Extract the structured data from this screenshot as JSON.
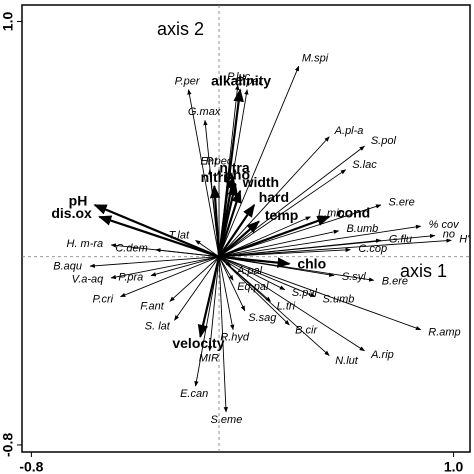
{
  "chart_data": {
    "type": "biplot",
    "axis_labels": [
      "axis 1",
      "axis 2"
    ],
    "xlim": [
      -0.84,
      1.07
    ],
    "ylim": [
      -0.83,
      1.07
    ],
    "xticks": [
      -0.8,
      {
        "value": 1,
        "label": "1.0"
      }
    ],
    "yticks": [
      -0.8,
      {
        "value": 1,
        "label": "1.0"
      }
    ],
    "environment": [
      {
        "label": "alkalinity",
        "x": 0.09,
        "y": 0.71
      },
      {
        "label": "nitri",
        "x": -0.02,
        "y": 0.3
      },
      {
        "label": "nitra",
        "x": 0.06,
        "y": 0.34
      },
      {
        "label": "pho",
        "x": 0.07,
        "y": 0.31
      },
      {
        "label": "width",
        "x": 0.09,
        "y": 0.28
      },
      {
        "label": "hard",
        "x": 0.15,
        "y": 0.22
      },
      {
        "label": "temp",
        "x": 0.17,
        "y": 0.15
      },
      {
        "label": "pH",
        "x": -0.53,
        "y": 0.22
      },
      {
        "label": "dis.ox",
        "x": -0.51,
        "y": 0.17
      },
      {
        "label": "cond",
        "x": 0.47,
        "y": 0.17
      },
      {
        "label": "chlo",
        "x": 0.3,
        "y": -0.03
      },
      {
        "label": "velocity",
        "x": -0.08,
        "y": -0.34
      }
    ],
    "species": [
      {
        "label": "M.spi",
        "x": 0.34,
        "y": 0.81
      },
      {
        "label": "P.per",
        "x": -0.13,
        "y": 0.71
      },
      {
        "label": "P.luc",
        "x": 0.08,
        "y": 0.73
      },
      {
        "label": "E.pal",
        "x": 0.12,
        "y": 0.71
      },
      {
        "label": "G.max",
        "x": -0.06,
        "y": 0.58
      },
      {
        "label": "A.pl-a",
        "x": 0.47,
        "y": 0.51
      },
      {
        "label": "S.pol",
        "x": 0.62,
        "y": 0.47
      },
      {
        "label": "S.lac",
        "x": 0.54,
        "y": 0.37
      },
      {
        "label": "P.pec",
        "x": 0.0,
        "y": 0.37
      },
      {
        "label": "Ent",
        "x": -0.04,
        "y": 0.37
      },
      {
        "label": "L.min",
        "x": 0.39,
        "y": 0.17
      },
      {
        "label": "S.ere",
        "x": 0.69,
        "y": 0.22
      },
      {
        "label": "B.umb",
        "x": 0.51,
        "y": 0.11
      },
      {
        "label": "% cov",
        "x": 0.86,
        "y": 0.13
      },
      {
        "label": "G.flu",
        "x": 0.69,
        "y": 0.07
      },
      {
        "label": "no",
        "x": 0.92,
        "y": 0.09
      },
      {
        "label": "H'",
        "x": 0.99,
        "y": 0.07
      },
      {
        "label": "C.cop",
        "x": 0.56,
        "y": 0.03
      },
      {
        "label": "T.lat",
        "x": -0.1,
        "y": 0.07
      },
      {
        "label": "H. m-ra",
        "x": -0.46,
        "y": 0.05
      },
      {
        "label": "C.dem",
        "x": -0.27,
        "y": 0.03
      },
      {
        "label": "B.aqu",
        "x": -0.55,
        "y": -0.04
      },
      {
        "label": "V.a-aq",
        "x": -0.46,
        "y": -0.09
      },
      {
        "label": "P.pra",
        "x": -0.29,
        "y": -0.08
      },
      {
        "label": "P.cri",
        "x": -0.42,
        "y": -0.17
      },
      {
        "label": "F.ant",
        "x": -0.21,
        "y": -0.19
      },
      {
        "label": "S. lat",
        "x": -0.19,
        "y": -0.27
      },
      {
        "label": "MIR",
        "x": -0.04,
        "y": -0.4
      },
      {
        "label": "E.can",
        "x": -0.1,
        "y": -0.55
      },
      {
        "label": "S.eme",
        "x": 0.03,
        "y": -0.66
      },
      {
        "label": "A.pal",
        "x": 0.05,
        "y": -0.04
      },
      {
        "label": "Eq.pal",
        "x": 0.06,
        "y": -0.1
      },
      {
        "label": "S.pal",
        "x": 0.28,
        "y": -0.14
      },
      {
        "label": "L.tri",
        "x": 0.22,
        "y": -0.19
      },
      {
        "label": "S.sag",
        "x": 0.11,
        "y": -0.23
      },
      {
        "label": "R.hyd",
        "x": 0.06,
        "y": -0.31
      },
      {
        "label": "S.syl",
        "x": 0.49,
        "y": -0.08
      },
      {
        "label": "S.umb",
        "x": 0.41,
        "y": -0.17
      },
      {
        "label": "B.cir",
        "x": 0.3,
        "y": -0.29
      },
      {
        "label": "B.ere",
        "x": 0.66,
        "y": -0.1
      },
      {
        "label": "N.lut",
        "x": 0.47,
        "y": -0.42
      },
      {
        "label": "A.rip",
        "x": 0.62,
        "y": -0.4
      },
      {
        "label": "R.amp",
        "x": 0.86,
        "y": -0.31
      }
    ]
  }
}
